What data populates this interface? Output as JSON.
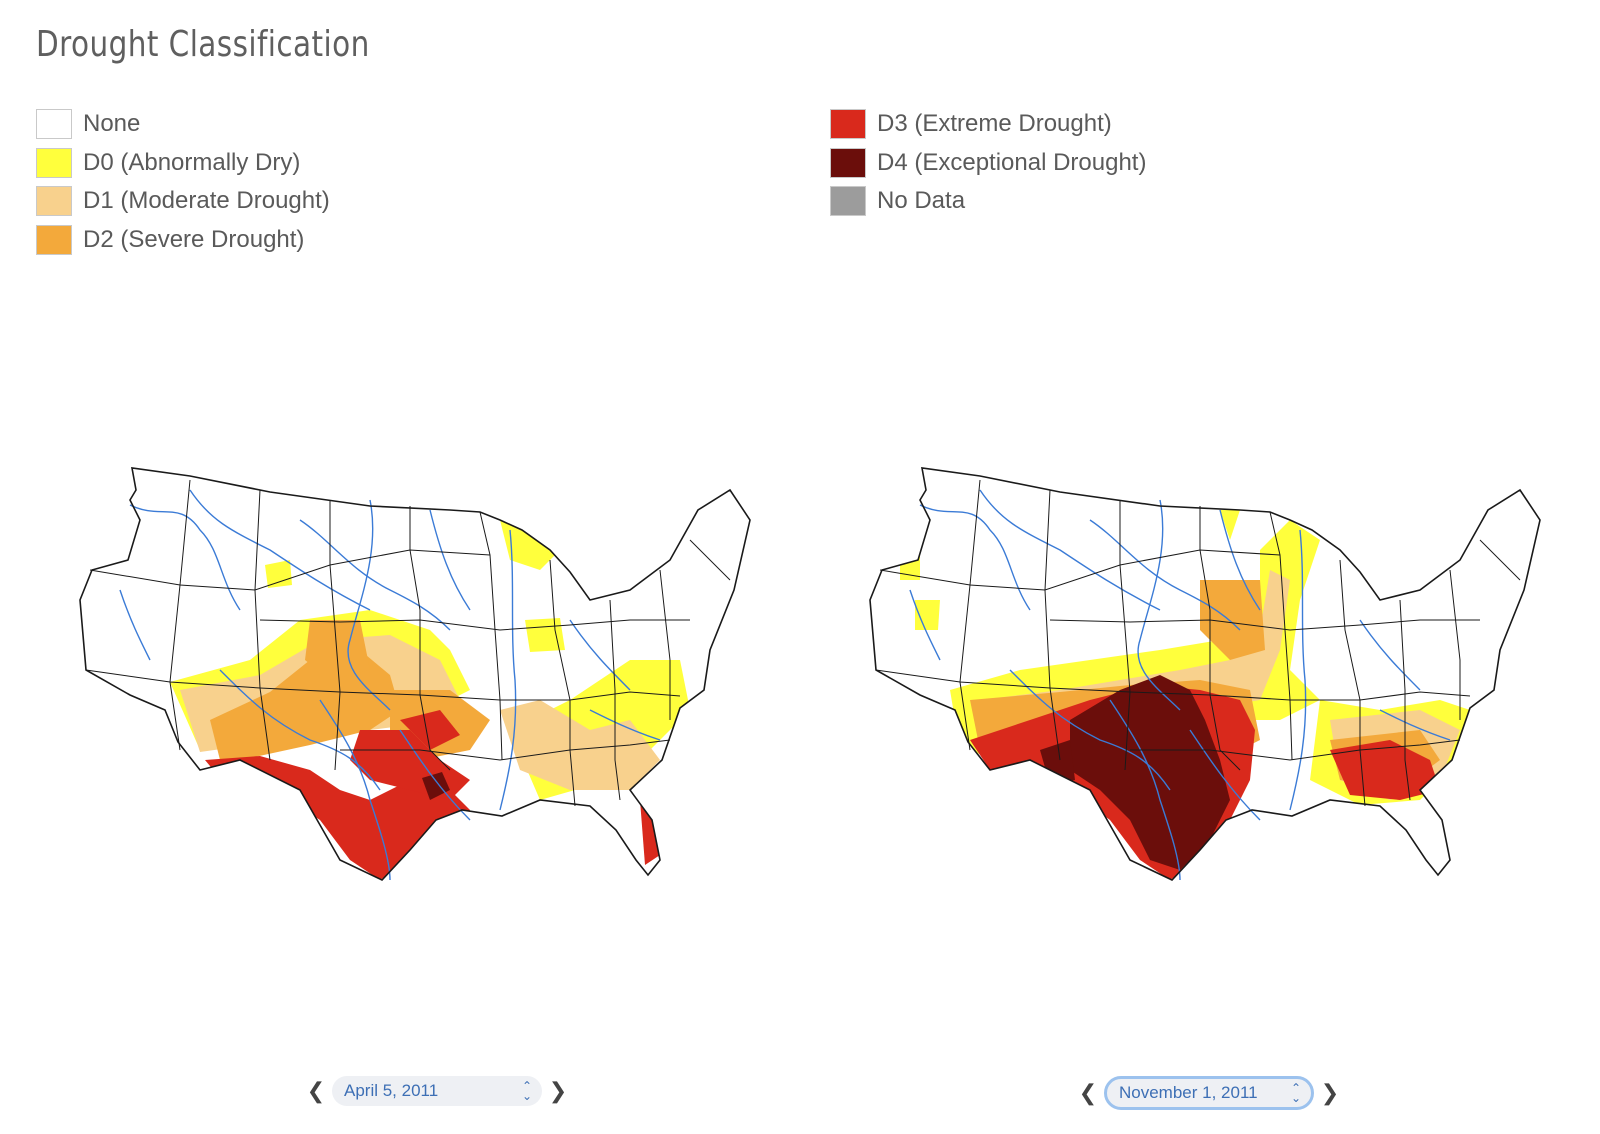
{
  "title": "Drought Classification",
  "legend": [
    {
      "label": "None",
      "color": "#ffffff"
    },
    {
      "label": "D0 (Abnormally Dry)",
      "color": "#ffff3c"
    },
    {
      "label": "D1 (Moderate Drought)",
      "color": "#f8d18d"
    },
    {
      "label": "D2 (Severe Drought)",
      "color": "#f3a93b"
    },
    {
      "label": "D3 (Extreme Drought)",
      "color": "#d9291c"
    },
    {
      "label": "D4 (Exceptional Drought)",
      "color": "#6b0e0b"
    },
    {
      "label": "No Data",
      "color": "#9c9c9c"
    }
  ],
  "maps": {
    "left": {
      "date": "April 5, 2011",
      "prev_icon": "chevron-left-icon",
      "next_icon": "chevron-right-icon"
    },
    "right": {
      "date": "November 1, 2011",
      "prev_icon": "chevron-left-icon",
      "next_icon": "chevron-right-icon"
    }
  },
  "colors": {
    "river": "#3b7bd6",
    "state_border": "#1a1a1a",
    "accent": "#3d6fb5"
  }
}
